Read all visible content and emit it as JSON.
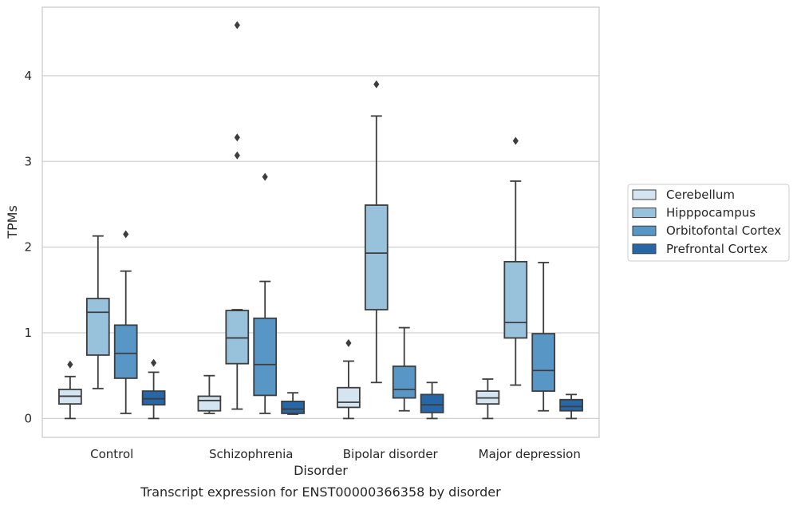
{
  "chart_data": {
    "type": "box",
    "title": "Transcript expression for ENST00000366358 by disorder",
    "xlabel": "Disorder",
    "ylabel": "TPMs",
    "ylim": [
      -0.22,
      4.8
    ],
    "yticks": [
      0,
      1,
      2,
      3,
      4
    ],
    "grid": "horizontal",
    "legend_position": "right",
    "categories": [
      "Control",
      "Schizophrenia",
      "Bipolar disorder",
      "Major depression"
    ],
    "series": [
      {
        "name": "Cerebellum",
        "color": "#d4e4f1",
        "boxes": [
          {
            "whislo": 0.0,
            "q1": 0.17,
            "med": 0.26,
            "q3": 0.34,
            "whishi": 0.49,
            "fliers": [
              0.63
            ]
          },
          {
            "whislo": 0.06,
            "q1": 0.09,
            "med": 0.21,
            "q3": 0.26,
            "whishi": 0.5,
            "fliers": []
          },
          {
            "whislo": 0.0,
            "q1": 0.13,
            "med": 0.19,
            "q3": 0.36,
            "whishi": 0.67,
            "fliers": [
              0.88
            ]
          },
          {
            "whislo": 0.0,
            "q1": 0.17,
            "med": 0.24,
            "q3": 0.32,
            "whishi": 0.46,
            "fliers": []
          }
        ]
      },
      {
        "name": "Hipppocampus",
        "color": "#98c1dc",
        "boxes": [
          {
            "whislo": 0.35,
            "q1": 0.74,
            "med": 1.24,
            "q3": 1.4,
            "whishi": 2.13,
            "fliers": []
          },
          {
            "whislo": 0.11,
            "q1": 0.64,
            "med": 0.94,
            "q3": 1.26,
            "whishi": 1.27,
            "fliers": [
              3.07,
              3.28,
              4.59
            ]
          },
          {
            "whislo": 0.42,
            "q1": 1.27,
            "med": 1.93,
            "q3": 2.49,
            "whishi": 3.53,
            "fliers": [
              3.9
            ]
          },
          {
            "whislo": 0.39,
            "q1": 0.94,
            "med": 1.12,
            "q3": 1.83,
            "whishi": 2.77,
            "fliers": [
              3.24
            ]
          }
        ]
      },
      {
        "name": "Orbitofontal Cortex",
        "color": "#5896c6",
        "boxes": [
          {
            "whislo": 0.06,
            "q1": 0.47,
            "med": 0.76,
            "q3": 1.09,
            "whishi": 1.72,
            "fliers": [
              2.15
            ]
          },
          {
            "whislo": 0.06,
            "q1": 0.27,
            "med": 0.63,
            "q3": 1.17,
            "whishi": 1.6,
            "fliers": [
              2.82
            ]
          },
          {
            "whislo": 0.09,
            "q1": 0.24,
            "med": 0.34,
            "q3": 0.61,
            "whishi": 1.06,
            "fliers": []
          },
          {
            "whislo": 0.09,
            "q1": 0.32,
            "med": 0.56,
            "q3": 0.99,
            "whishi": 1.82,
            "fliers": []
          }
        ]
      },
      {
        "name": "Prefrontal Cortex",
        "color": "#2767a8",
        "boxes": [
          {
            "whislo": 0.0,
            "q1": 0.16,
            "med": 0.23,
            "q3": 0.32,
            "whishi": 0.54,
            "fliers": [
              0.65
            ]
          },
          {
            "whislo": 0.05,
            "q1": 0.06,
            "med": 0.11,
            "q3": 0.2,
            "whishi": 0.3,
            "fliers": []
          },
          {
            "whislo": 0.0,
            "q1": 0.07,
            "med": 0.16,
            "q3": 0.28,
            "whishi": 0.42,
            "fliers": []
          },
          {
            "whislo": 0.0,
            "q1": 0.09,
            "med": 0.14,
            "q3": 0.22,
            "whishi": 0.28,
            "fliers": []
          }
        ]
      }
    ]
  }
}
